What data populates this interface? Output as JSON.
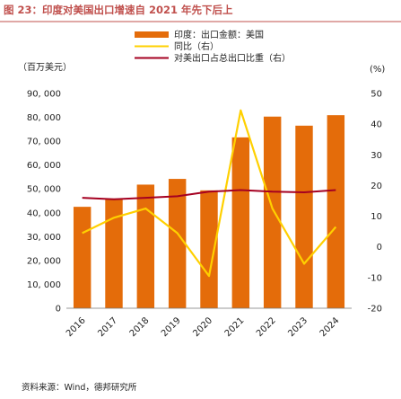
{
  "figure": {
    "title": "图 23：印度对美国出口增速自 2021 年先下后上",
    "source": "资料来源：Wind，德邦研究所"
  },
  "colors": {
    "title": "#c0504d",
    "bar": "#e46c0a",
    "yoy_line": "#ffd000",
    "share_line": "#a50021",
    "top_rule": "#c0504d"
  },
  "chart_data": {
    "type": "bar",
    "categories": [
      "2016",
      "2017",
      "2018",
      "2019",
      "2020",
      "2021",
      "2022",
      "2023",
      "2024"
    ],
    "y_left": {
      "unit": "（百万美元）",
      "lim": [
        0,
        90000
      ],
      "ticks": [
        0,
        10000,
        20000,
        30000,
        40000,
        50000,
        60000,
        70000,
        80000,
        90000
      ],
      "tick_labels": [
        "0",
        "10, 000",
        "20, 000",
        "30, 000",
        "40, 000",
        "50, 000",
        "60, 000",
        "70, 000",
        "80, 000",
        "90, 000"
      ]
    },
    "y_right": {
      "unit": "(%)",
      "lim": [
        -20,
        50
      ],
      "ticks": [
        -20,
        -10,
        0,
        10,
        20,
        30,
        40,
        50
      ],
      "tick_labels": [
        "-20",
        "-10",
        "0",
        "10",
        "20",
        "30",
        "40",
        "50"
      ]
    },
    "series": [
      {
        "name": "印度：出口金额：美国",
        "type": "bar",
        "axis": "left",
        "values": [
          42500,
          46000,
          51800,
          54200,
          49400,
          71600,
          80300,
          76500,
          80900
        ]
      },
      {
        "name": "同比（右）",
        "type": "line",
        "axis": "right",
        "values": [
          4.5,
          9.5,
          12.5,
          4.5,
          -9.5,
          44.5,
          12.5,
          -5.5,
          6.5
        ]
      },
      {
        "name": "对美出口占总出口比重（右）",
        "type": "line",
        "axis": "right",
        "values": [
          16.0,
          15.5,
          16.0,
          16.5,
          18.0,
          18.5,
          18.0,
          17.8,
          18.5
        ]
      }
    ],
    "legend": "top-center",
    "grid": false
  }
}
